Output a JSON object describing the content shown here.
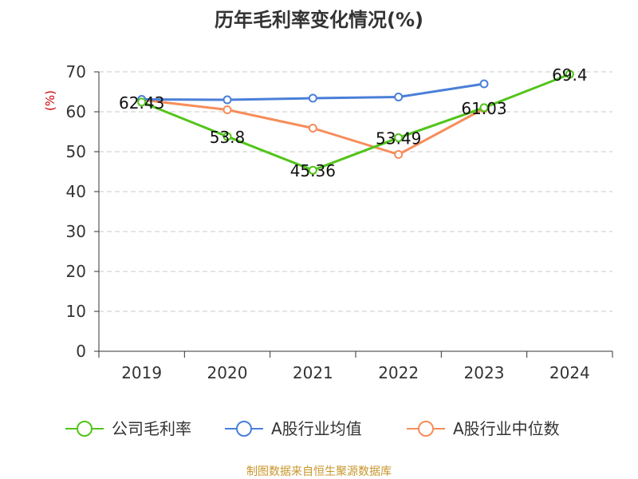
{
  "chart_data": {
    "type": "line",
    "title": "历年毛利率变化情况(%)",
    "ylabel": "(%)",
    "xlabel": "",
    "categories": [
      "2019",
      "2020",
      "2021",
      "2022",
      "2023",
      "2024"
    ],
    "ylim": [
      0,
      70
    ],
    "yticks": [
      0,
      10,
      20,
      30,
      40,
      50,
      60,
      70
    ],
    "grid": true,
    "legend_position": "bottom",
    "series": [
      {
        "name": "公司毛利率",
        "color": "#52c41a",
        "values": [
          62.43,
          53.8,
          45.36,
          53.49,
          61.03,
          69.4
        ],
        "labels": [
          "62.43",
          "53.8",
          "45.36",
          "53.49",
          "61.03",
          "69.4"
        ]
      },
      {
        "name": "A股行业均值",
        "color": "#4a7fd8",
        "values": [
          63.1,
          63.0,
          63.4,
          63.7,
          67.0,
          null
        ],
        "labels": []
      },
      {
        "name": "A股行业中位数",
        "color": "#f68d5a",
        "values": [
          63.0,
          60.5,
          55.9,
          49.3,
          60.8,
          null
        ],
        "labels": []
      }
    ],
    "source": "制图数据来自恒生聚源数据库"
  }
}
